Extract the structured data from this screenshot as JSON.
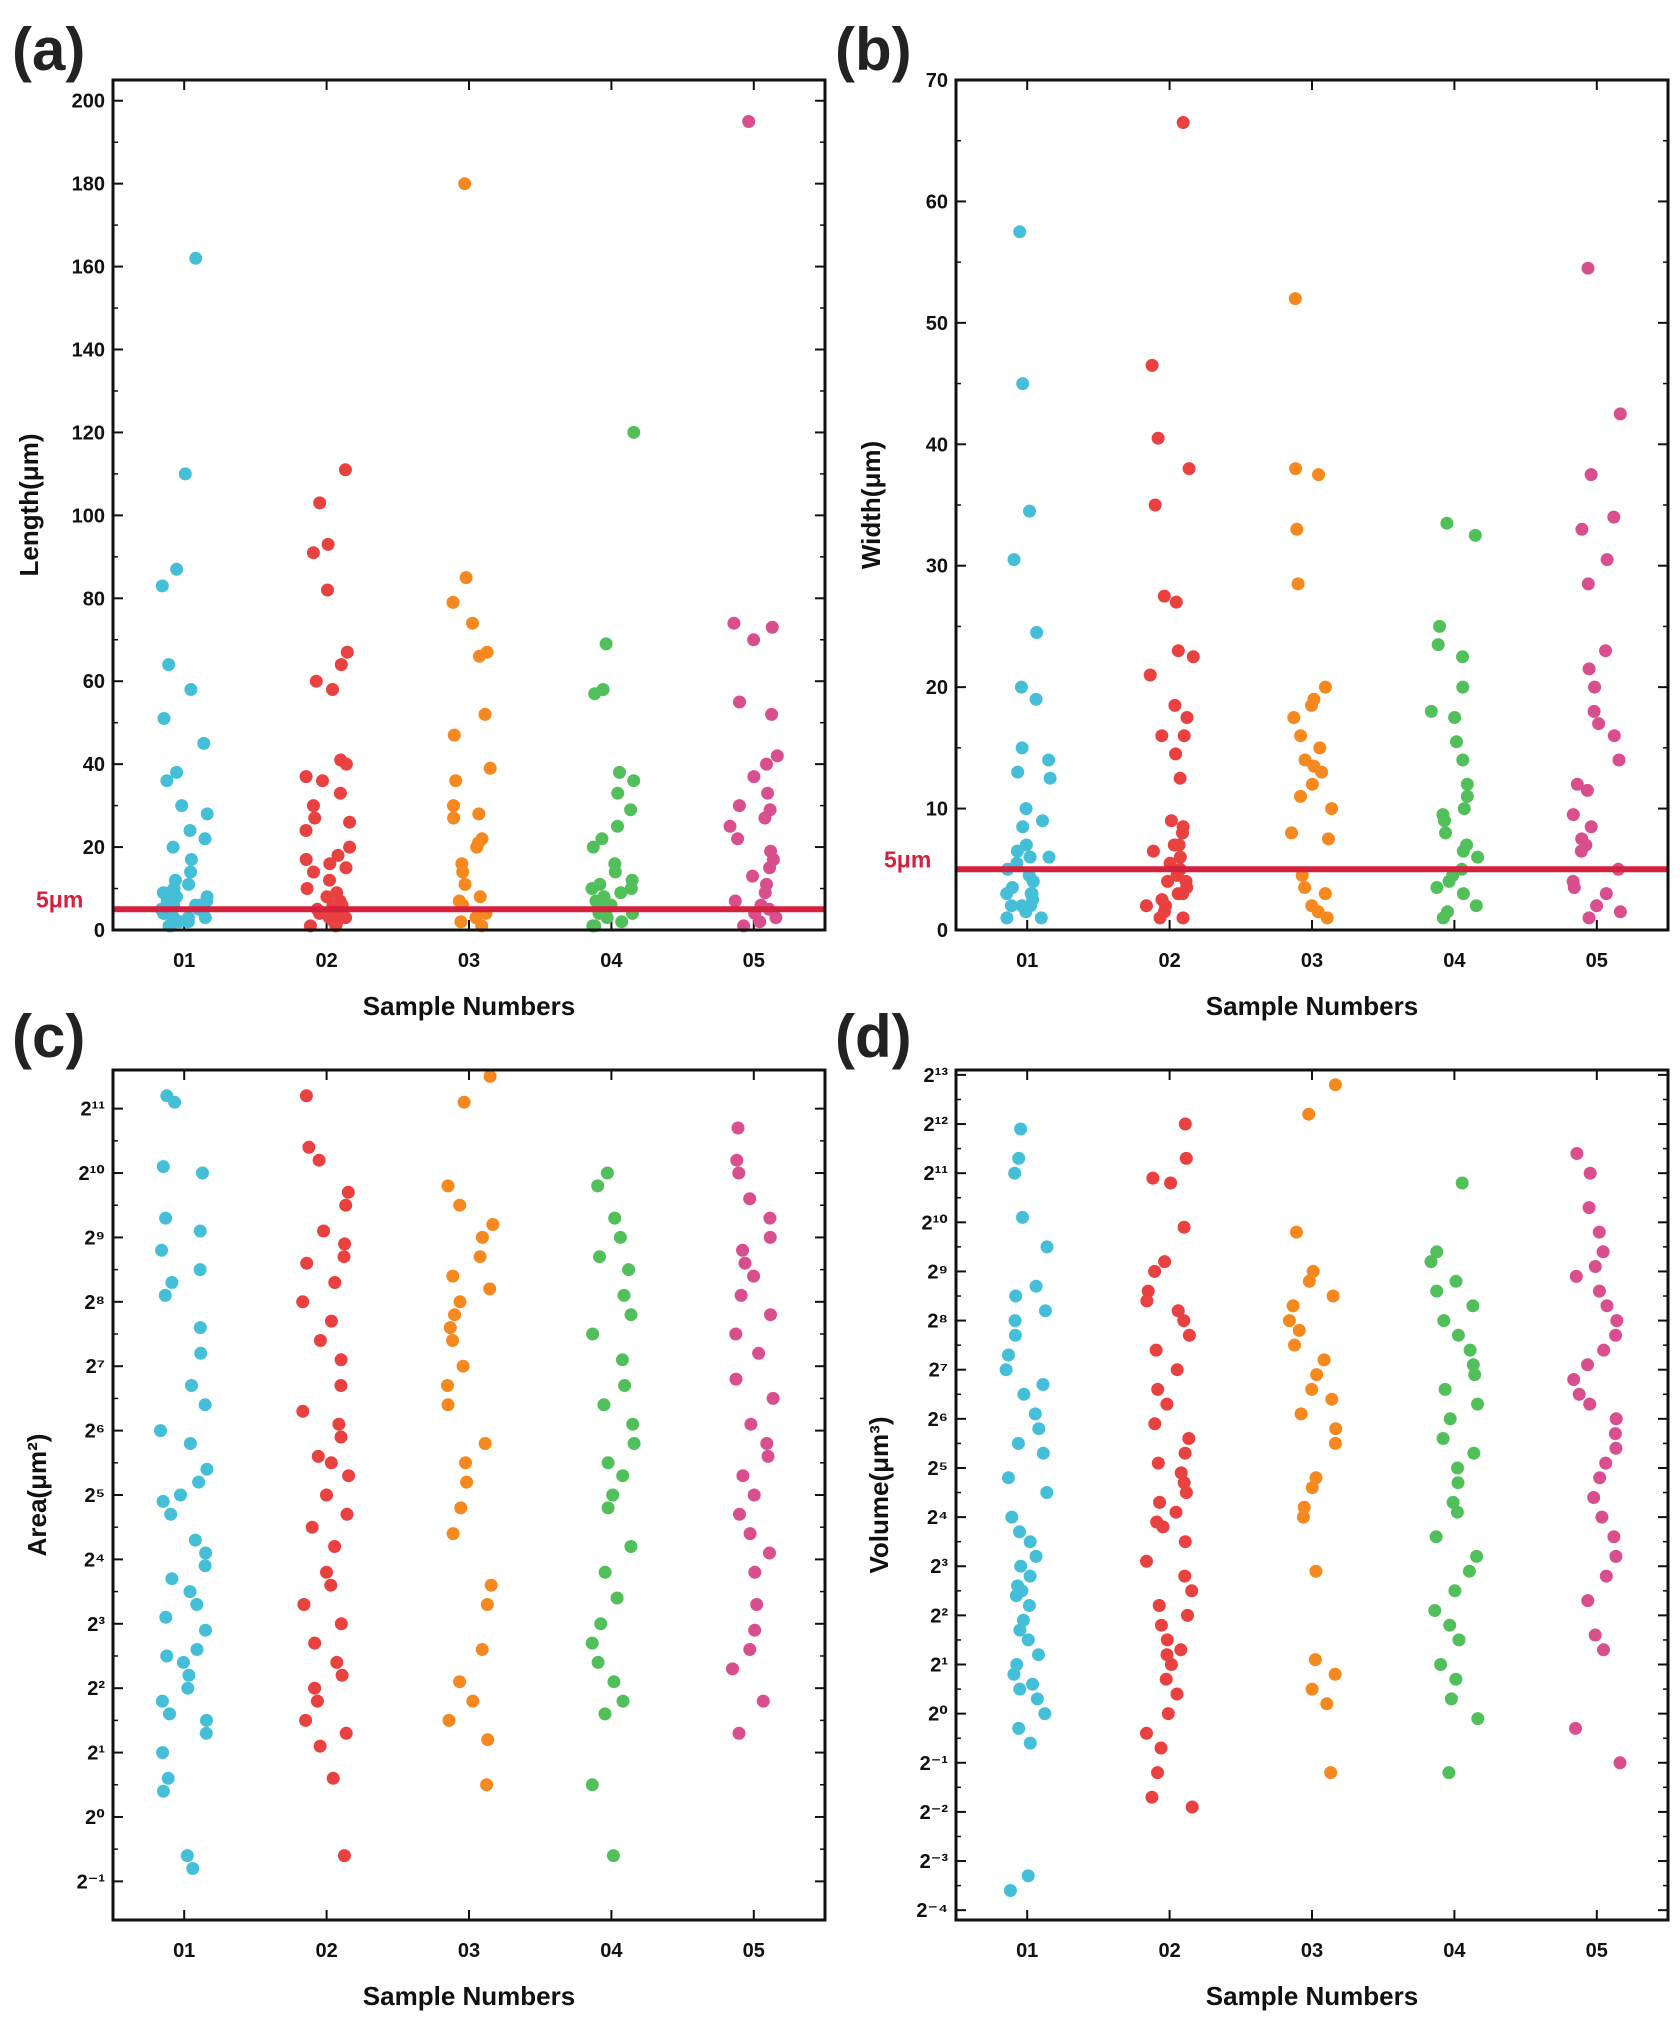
{
  "chart_data": [
    {
      "panel": "(a)",
      "type": "scatter",
      "scale": "linear",
      "xlabel": "Sample Numbers",
      "ylabel": "Length(μm)",
      "categories": [
        "01",
        "02",
        "03",
        "04",
        "05"
      ],
      "ylim": [
        0,
        205
      ],
      "yticks": [
        0,
        20,
        40,
        60,
        80,
        100,
        120,
        140,
        160,
        180,
        200
      ],
      "yticklabels": [
        "0",
        "20",
        "40",
        "60",
        "80",
        "100",
        "120",
        "140",
        "160",
        "180",
        "200"
      ],
      "reference_line": {
        "value": 5,
        "label": "5μm",
        "color": "#d4213d"
      },
      "series": [
        {
          "name": "01",
          "color": "#45bfd8",
          "values": [
            162,
            110,
            87,
            83,
            64,
            58,
            51,
            45,
            38,
            36,
            30,
            28,
            24,
            22,
            20,
            17,
            14,
            12,
            11,
            10,
            9,
            8,
            8,
            7,
            7,
            6,
            6,
            5,
            5,
            4,
            4,
            3,
            3,
            2,
            2,
            1,
            1,
            9,
            6,
            3
          ]
        },
        {
          "name": "02",
          "color": "#e8413f",
          "values": [
            111,
            103,
            93,
            91,
            82,
            67,
            64,
            60,
            58,
            41,
            40,
            37,
            36,
            33,
            30,
            27,
            26,
            24,
            20,
            18,
            17,
            16,
            15,
            14,
            12,
            10,
            9,
            8,
            7,
            6,
            5,
            4,
            4,
            3,
            3,
            2,
            2,
            1,
            1,
            6
          ]
        },
        {
          "name": "03",
          "color": "#f5891f",
          "values": [
            180,
            85,
            79,
            74,
            67,
            66,
            52,
            47,
            39,
            36,
            30,
            28,
            27,
            22,
            21,
            20,
            16,
            14,
            11,
            8,
            7,
            6,
            4,
            3,
            2,
            1
          ]
        },
        {
          "name": "04",
          "color": "#52c05a",
          "values": [
            120,
            69,
            58,
            57,
            38,
            36,
            33,
            29,
            25,
            22,
            20,
            16,
            14,
            12,
            11,
            10,
            9,
            8,
            7,
            6,
            5,
            4,
            4,
            3,
            2,
            1,
            1,
            10,
            7
          ]
        },
        {
          "name": "05",
          "color": "#d94f8e",
          "values": [
            195,
            74,
            73,
            70,
            55,
            52,
            42,
            40,
            37,
            33,
            30,
            29,
            27,
            25,
            22,
            19,
            17,
            15,
            13,
            11,
            9,
            7,
            6,
            5,
            4,
            3,
            2,
            1
          ]
        }
      ]
    },
    {
      "panel": "(b)",
      "type": "scatter",
      "scale": "linear",
      "xlabel": "Sample Numbers",
      "ylabel": "Width(μm)",
      "categories": [
        "01",
        "02",
        "03",
        "04",
        "05"
      ],
      "ylim": [
        0,
        70
      ],
      "yticks": [
        0,
        10,
        20,
        30,
        40,
        50,
        60,
        70
      ],
      "yticklabels": [
        "0",
        "10",
        "20",
        "30",
        "40",
        "50",
        "60",
        "70"
      ],
      "reference_line": {
        "value": 5,
        "label": "5μm",
        "color": "#d4213d"
      },
      "series": [
        {
          "name": "01",
          "color": "#45bfd8",
          "values": [
            57.5,
            45,
            34.5,
            30.5,
            24.5,
            20,
            19,
            15,
            14,
            13,
            12.5,
            10,
            9,
            8.5,
            7,
            6.5,
            6,
            5.5,
            5,
            4.5,
            4,
            4,
            3.5,
            3,
            3,
            2.5,
            2,
            2,
            1.5,
            1,
            1,
            6,
            3,
            2
          ]
        },
        {
          "name": "02",
          "color": "#e8413f",
          "values": [
            66.5,
            46.5,
            40.5,
            38,
            35,
            27.5,
            27,
            23,
            22.5,
            21,
            18.5,
            17.5,
            16,
            16,
            14.5,
            12.5,
            9,
            8.5,
            8,
            7,
            6.5,
            6,
            5.5,
            5,
            4.5,
            4,
            4,
            3.5,
            3,
            2.5,
            2,
            2,
            1.5,
            1,
            1,
            7,
            3
          ]
        },
        {
          "name": "03",
          "color": "#f5891f",
          "values": [
            52,
            38,
            37.5,
            33,
            28.5,
            20,
            19,
            18.5,
            17.5,
            16,
            15,
            14,
            13.5,
            13,
            12,
            11,
            10,
            8,
            7.5,
            4.5,
            3.5,
            3,
            2,
            1.5,
            1
          ]
        },
        {
          "name": "04",
          "color": "#52c05a",
          "values": [
            33.5,
            32.5,
            25,
            23.5,
            22.5,
            20,
            18,
            17.5,
            15.5,
            14,
            12,
            11,
            10,
            9.5,
            9,
            8,
            7,
            6.5,
            6,
            5,
            4.5,
            4,
            3.5,
            3,
            2,
            1.5,
            1
          ]
        },
        {
          "name": "05",
          "color": "#d94f8e",
          "values": [
            54.5,
            42.5,
            37.5,
            34,
            33,
            30.5,
            28.5,
            23,
            21.5,
            20,
            18,
            17,
            16,
            14,
            12,
            11.5,
            9.5,
            8.5,
            7.5,
            7,
            6.5,
            5,
            4,
            3.5,
            3,
            2,
            1.5,
            1
          ]
        }
      ]
    },
    {
      "panel": "(c)",
      "type": "scatter",
      "scale": "log2",
      "xlabel": "Sample Numbers",
      "ylabel": "Area(μm²)",
      "categories": [
        "01",
        "02",
        "03",
        "04",
        "05"
      ],
      "ylim_exponent": [
        -1.6,
        11.6
      ],
      "ytick_exponents": [
        -1,
        0,
        1,
        2,
        3,
        4,
        5,
        6,
        7,
        8,
        9,
        10,
        11
      ],
      "yticklabels": [
        "2⁻¹",
        "2⁰",
        "2¹",
        "2²",
        "2³",
        "2⁴",
        "2⁵",
        "2⁶",
        "2⁷",
        "2⁸",
        "2⁹",
        "2¹⁰",
        "2¹¹"
      ],
      "series": [
        {
          "name": "01",
          "color": "#45bfd8",
          "exponents": [
            11.2,
            11.1,
            10.1,
            10.0,
            9.3,
            9.1,
            8.8,
            8.5,
            8.3,
            8.1,
            7.6,
            7.2,
            6.7,
            6.4,
            6.0,
            5.8,
            5.4,
            5.2,
            5.0,
            4.9,
            4.7,
            4.3,
            4.1,
            3.9,
            3.7,
            3.5,
            3.3,
            3.1,
            2.9,
            2.6,
            2.4,
            2.2,
            2.0,
            1.8,
            1.6,
            1.3,
            1.0,
            0.6,
            0.4,
            -0.6,
            -0.8,
            2.5,
            1.5
          ]
        },
        {
          "name": "02",
          "color": "#e8413f",
          "exponents": [
            11.2,
            10.4,
            10.2,
            9.7,
            9.5,
            9.1,
            8.9,
            8.7,
            8.6,
            8.3,
            8.0,
            7.7,
            7.4,
            7.1,
            6.7,
            6.3,
            6.1,
            5.9,
            5.6,
            5.5,
            5.3,
            5.0,
            4.7,
            4.5,
            4.2,
            3.8,
            3.6,
            3.3,
            3.0,
            2.7,
            2.4,
            2.2,
            2.0,
            1.8,
            1.5,
            1.3,
            1.1,
            0.6,
            -0.6
          ]
        },
        {
          "name": "03",
          "color": "#f5891f",
          "exponents": [
            11.5,
            11.1,
            9.8,
            9.5,
            9.2,
            9.0,
            8.7,
            8.4,
            8.2,
            8.0,
            7.8,
            7.6,
            7.4,
            7.0,
            6.7,
            6.4,
            5.8,
            5.5,
            5.2,
            4.8,
            4.4,
            3.6,
            3.3,
            2.6,
            2.1,
            1.8,
            1.5,
            1.2,
            0.5
          ]
        },
        {
          "name": "04",
          "color": "#52c05a",
          "exponents": [
            10.0,
            9.8,
            9.3,
            9.0,
            8.7,
            8.5,
            8.1,
            7.8,
            7.5,
            7.1,
            6.7,
            6.4,
            6.1,
            5.8,
            5.5,
            5.3,
            5.0,
            4.8,
            4.2,
            3.8,
            3.4,
            3.0,
            2.7,
            2.4,
            2.1,
            1.8,
            1.6,
            0.5,
            -0.6
          ]
        },
        {
          "name": "05",
          "color": "#d94f8e",
          "exponents": [
            10.7,
            10.2,
            10.0,
            9.6,
            9.3,
            9.0,
            8.8,
            8.6,
            8.4,
            8.1,
            7.8,
            7.5,
            7.2,
            6.8,
            6.5,
            6.1,
            5.8,
            5.6,
            5.3,
            5.0,
            4.7,
            4.4,
            4.1,
            3.8,
            3.3,
            2.9,
            2.6,
            2.3,
            1.8,
            1.3
          ]
        }
      ]
    },
    {
      "panel": "(d)",
      "type": "scatter",
      "scale": "log2",
      "xlabel": "Sample Numbers",
      "ylabel": "Volume(μm³)",
      "categories": [
        "01",
        "02",
        "03",
        "04",
        "05"
      ],
      "ylim_exponent": [
        -4.2,
        13.1
      ],
      "ytick_exponents": [
        -4,
        -3,
        -2,
        -1,
        0,
        1,
        2,
        3,
        4,
        5,
        6,
        7,
        8,
        9,
        10,
        11,
        12,
        13
      ],
      "yticklabels": [
        "2⁻⁴",
        "2⁻³",
        "2⁻²",
        "2⁻¹",
        "2⁰",
        "2¹",
        "2²",
        "2³",
        "2⁴",
        "2⁵",
        "2⁶",
        "2⁷",
        "2⁸",
        "2⁹",
        "2¹⁰",
        "2¹¹",
        "2¹²",
        "2¹³"
      ],
      "series": [
        {
          "name": "01",
          "color": "#45bfd8",
          "exponents": [
            11.9,
            11.3,
            11.0,
            10.1,
            9.5,
            8.7,
            8.5,
            8.2,
            8.0,
            7.7,
            7.3,
            7.0,
            6.7,
            6.5,
            6.1,
            5.8,
            5.5,
            5.3,
            4.8,
            4.5,
            4.0,
            3.7,
            3.5,
            3.2,
            3.0,
            2.8,
            2.6,
            2.4,
            2.2,
            1.9,
            1.7,
            1.5,
            1.2,
            1.0,
            0.8,
            0.6,
            0.3,
            0.0,
            -0.3,
            -0.6,
            -3.3,
            -3.6,
            2.5,
            0.5
          ]
        },
        {
          "name": "02",
          "color": "#e8413f",
          "exponents": [
            12.0,
            11.3,
            10.9,
            10.8,
            9.9,
            9.2,
            9.0,
            8.6,
            8.4,
            8.2,
            8.0,
            7.7,
            7.4,
            7.0,
            6.6,
            6.3,
            5.9,
            5.6,
            5.3,
            5.1,
            4.9,
            4.7,
            4.5,
            4.3,
            4.1,
            3.8,
            3.5,
            3.1,
            2.8,
            2.5,
            2.2,
            2.0,
            1.8,
            1.5,
            1.3,
            1.0,
            0.7,
            0.4,
            0.0,
            -0.4,
            -0.7,
            -1.2,
            -1.7,
            -1.9,
            3.9,
            1.2
          ]
        },
        {
          "name": "03",
          "color": "#f5891f",
          "exponents": [
            12.8,
            12.2,
            9.8,
            9.0,
            8.8,
            8.5,
            8.3,
            8.0,
            7.8,
            7.5,
            7.2,
            6.9,
            6.6,
            6.4,
            6.1,
            5.8,
            5.5,
            4.8,
            4.6,
            4.2,
            4.0,
            2.9,
            1.1,
            0.8,
            0.5,
            0.2,
            -1.2
          ]
        },
        {
          "name": "04",
          "color": "#52c05a",
          "exponents": [
            10.8,
            9.4,
            9.2,
            8.8,
            8.6,
            8.3,
            8.0,
            7.7,
            7.4,
            7.1,
            6.9,
            6.6,
            6.3,
            6.0,
            5.6,
            5.3,
            5.0,
            4.7,
            4.3,
            4.1,
            3.6,
            3.2,
            2.9,
            2.5,
            2.1,
            1.8,
            1.5,
            1.0,
            0.7,
            0.3,
            -0.1,
            -1.2
          ]
        },
        {
          "name": "05",
          "color": "#d94f8e",
          "exponents": [
            11.4,
            11.0,
            10.3,
            9.8,
            9.4,
            9.1,
            8.9,
            8.6,
            8.3,
            8.0,
            7.7,
            7.4,
            7.1,
            6.8,
            6.5,
            6.3,
            6.0,
            5.7,
            5.4,
            5.1,
            4.8,
            4.4,
            4.0,
            3.6,
            3.2,
            2.8,
            2.3,
            1.6,
            1.3,
            -0.3,
            -1.0
          ]
        }
      ]
    }
  ]
}
